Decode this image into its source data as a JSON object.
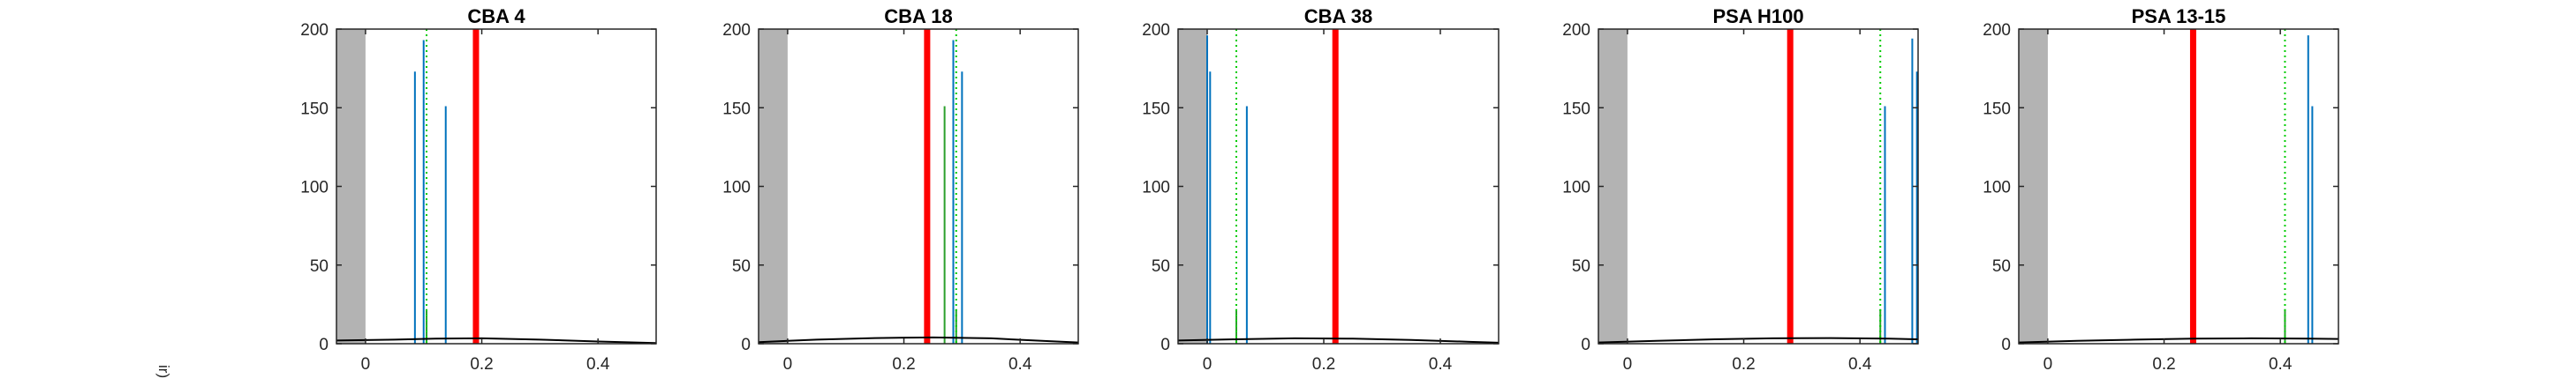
{
  "figure": {
    "edge_label": "ir)"
  },
  "chart_data": [
    {
      "type": "bar",
      "title": "CBA 4",
      "xlim": [
        -0.05,
        0.5
      ],
      "ylim": [
        0,
        200
      ],
      "xticks": [
        0,
        0.2,
        0.4
      ],
      "yticks": [
        0,
        50,
        100,
        150,
        200
      ],
      "xtick_labels": [
        "0",
        "0.2",
        "0.4"
      ],
      "ytick_labels": [
        "0",
        "50",
        "100",
        "150",
        "200"
      ],
      "shaded_region": [
        -0.05,
        0.0
      ],
      "bars": [
        {
          "x": 0.085,
          "value": 173,
          "color": "#0072BD"
        },
        {
          "x": 0.1,
          "value": 193,
          "color": "#0072BD"
        },
        {
          "x": 0.138,
          "value": 151,
          "color": "#0072BD"
        },
        {
          "x": 0.105,
          "value": 22,
          "color": "#2CA02C"
        }
      ],
      "green_line_x": 0.105,
      "red_line_x": 0.19,
      "curve": [
        [
          -0.05,
          2
        ],
        [
          0.05,
          2.6
        ],
        [
          0.12,
          3.2
        ],
        [
          0.2,
          3.4
        ],
        [
          0.3,
          2.6
        ],
        [
          0.4,
          1.4
        ],
        [
          0.5,
          0.4
        ]
      ]
    },
    {
      "type": "bar",
      "title": "CBA 18",
      "xlim": [
        -0.05,
        0.5
      ],
      "ylim": [
        0,
        200
      ],
      "xticks": [
        0,
        0.2,
        0.4
      ],
      "yticks": [
        0,
        50,
        100,
        150,
        200
      ],
      "xtick_labels": [
        "0",
        "0.2",
        "0.4"
      ],
      "ytick_labels": [
        "0",
        "50",
        "100",
        "150",
        "200"
      ],
      "shaded_region": [
        -0.05,
        0.0
      ],
      "bars": [
        {
          "x": 0.27,
          "value": 151,
          "color": "#2CA02C"
        },
        {
          "x": 0.285,
          "value": 193,
          "color": "#0072BD"
        },
        {
          "x": 0.3,
          "value": 173,
          "color": "#0072BD"
        },
        {
          "x": 0.29,
          "value": 22,
          "color": "#2CA02C"
        }
      ],
      "green_line_x": 0.29,
      "red_line_x": 0.24,
      "curve": [
        [
          -0.05,
          1
        ],
        [
          0.05,
          2.6
        ],
        [
          0.15,
          3.6
        ],
        [
          0.25,
          4
        ],
        [
          0.35,
          3.4
        ],
        [
          0.45,
          1.6
        ],
        [
          0.5,
          0.8
        ]
      ]
    },
    {
      "type": "bar",
      "title": "CBA 38",
      "xlim": [
        -0.05,
        0.5
      ],
      "ylim": [
        0,
        200
      ],
      "xticks": [
        0,
        0.2,
        0.4
      ],
      "yticks": [
        0,
        50,
        100,
        150,
        200
      ],
      "xtick_labels": [
        "0",
        "0.2",
        "0.4"
      ],
      "ytick_labels": [
        "0",
        "50",
        "100",
        "150",
        "200"
      ],
      "shaded_region": [
        -0.05,
        0.0
      ],
      "bars": [
        {
          "x": 0.0,
          "value": 196,
          "color": "#0072BD"
        },
        {
          "x": 0.005,
          "value": 173,
          "color": "#0072BD"
        },
        {
          "x": 0.068,
          "value": 151,
          "color": "#0072BD"
        },
        {
          "x": 0.05,
          "value": 22,
          "color": "#2CA02C"
        }
      ],
      "green_line_x": 0.05,
      "red_line_x": 0.22,
      "curve": [
        [
          -0.05,
          2
        ],
        [
          0.05,
          2.8
        ],
        [
          0.15,
          3.4
        ],
        [
          0.25,
          3.2
        ],
        [
          0.35,
          2.4
        ],
        [
          0.45,
          1.2
        ],
        [
          0.5,
          0.6
        ]
      ]
    },
    {
      "type": "bar",
      "title": "PSA H100",
      "xlim": [
        -0.05,
        0.5
      ],
      "ylim": [
        0,
        200
      ],
      "xticks": [
        0,
        0.2,
        0.4
      ],
      "yticks": [
        0,
        50,
        100,
        150,
        200
      ],
      "xtick_labels": [
        "0",
        "0.2",
        "0.4"
      ],
      "ytick_labels": [
        "0",
        "50",
        "100",
        "150",
        "200"
      ],
      "shaded_region": [
        -0.05,
        0.0
      ],
      "bars": [
        {
          "x": 0.435,
          "value": 22,
          "color": "#2CA02C"
        },
        {
          "x": 0.443,
          "value": 151,
          "color": "#0072BD"
        },
        {
          "x": 0.49,
          "value": 194,
          "color": "#0072BD"
        },
        {
          "x": 0.498,
          "value": 173,
          "color": "#0072BD"
        }
      ],
      "green_line_x": 0.435,
      "red_line_x": 0.28,
      "curve": [
        [
          -0.05,
          0.8
        ],
        [
          0.05,
          1.8
        ],
        [
          0.15,
          2.8
        ],
        [
          0.25,
          3.4
        ],
        [
          0.35,
          3.6
        ],
        [
          0.45,
          3.2
        ],
        [
          0.5,
          2.8
        ]
      ]
    },
    {
      "type": "bar",
      "title": "PSA 13-15",
      "xlim": [
        -0.05,
        0.5
      ],
      "ylim": [
        0,
        200
      ],
      "xticks": [
        0,
        0.2,
        0.4
      ],
      "yticks": [
        0,
        50,
        100,
        150,
        200
      ],
      "xtick_labels": [
        "0",
        "0.2",
        "0.4"
      ],
      "ytick_labels": [
        "0",
        "50",
        "100",
        "150",
        "200"
      ],
      "shaded_region": [
        -0.05,
        0.0
      ],
      "bars": [
        {
          "x": 0.408,
          "value": 22,
          "color": "#2CA02C"
        },
        {
          "x": 0.448,
          "value": 196,
          "color": "#0072BD"
        },
        {
          "x": 0.455,
          "value": 151,
          "color": "#0072BD"
        }
      ],
      "green_line_x": 0.408,
      "red_line_x": 0.25,
      "curve": [
        [
          -0.05,
          0.8
        ],
        [
          0.05,
          1.8
        ],
        [
          0.15,
          2.6
        ],
        [
          0.25,
          3.2
        ],
        [
          0.35,
          3.4
        ],
        [
          0.45,
          3.2
        ],
        [
          0.5,
          3
        ]
      ]
    }
  ],
  "colors": {
    "axis": "#262626",
    "shade": "#b3b3b3",
    "red_line": "#ff0000",
    "green_dotted": "#00cc00",
    "curve": "#000000"
  }
}
